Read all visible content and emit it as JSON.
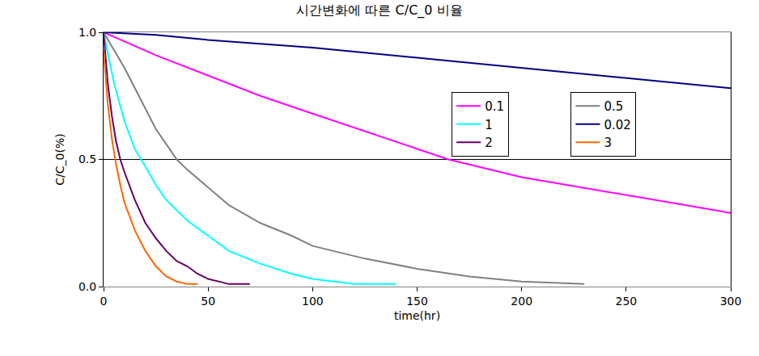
{
  "chart_data": {
    "type": "line",
    "title": "시간변화에 따른 C/C_0 비율",
    "x_label": "time(hr)",
    "y_label": "C/C_0(%)",
    "xlim": [
      0,
      300
    ],
    "xticks": [
      0,
      50,
      100,
      150,
      200,
      250,
      300
    ],
    "ylim": [
      0,
      1
    ],
    "yticks": [
      {
        "value": 0,
        "label": "0.0"
      },
      {
        "value": 0.5,
        "label": "0.5"
      },
      {
        "value": 1,
        "label": "1.0"
      }
    ],
    "grid": true,
    "legend": "upper right",
    "series": [
      {
        "name": "0.1",
        "color": "#ff00ff",
        "x": [
          0,
          25,
          50,
          75,
          100,
          125,
          150,
          165,
          200,
          250,
          300
        ],
        "values": [
          1.0,
          0.91,
          0.83,
          0.75,
          0.68,
          0.61,
          0.54,
          0.5,
          0.43,
          0.36,
          0.29
        ]
      },
      {
        "name": "0.5",
        "color": "#808080",
        "x": [
          0,
          5,
          10,
          15,
          20,
          25,
          30,
          35,
          40,
          50,
          60,
          75,
          90,
          100,
          125,
          150,
          175,
          200,
          230
        ],
        "values": [
          1.0,
          0.93,
          0.86,
          0.78,
          0.7,
          0.62,
          0.56,
          0.5,
          0.46,
          0.39,
          0.32,
          0.25,
          0.2,
          0.16,
          0.11,
          0.07,
          0.04,
          0.02,
          0.01
        ]
      },
      {
        "name": "1",
        "color": "#00ffff",
        "x": [
          0,
          2,
          5,
          10,
          15,
          18,
          25,
          30,
          40,
          50,
          60,
          75,
          90,
          100,
          120,
          140
        ],
        "values": [
          1.0,
          0.92,
          0.8,
          0.65,
          0.54,
          0.5,
          0.4,
          0.34,
          0.26,
          0.2,
          0.14,
          0.09,
          0.05,
          0.03,
          0.01,
          0.01
        ]
      },
      {
        "name": "0.02",
        "color": "#000080",
        "x": [
          0,
          25,
          50,
          100,
          150,
          200,
          250,
          300
        ],
        "values": [
          1.0,
          0.99,
          0.97,
          0.94,
          0.9,
          0.86,
          0.82,
          0.78
        ]
      },
      {
        "name": "2",
        "color": "#660066",
        "x": [
          0,
          2,
          4,
          6,
          8,
          10,
          15,
          20,
          25,
          30,
          35,
          40,
          45,
          50,
          60,
          70
        ],
        "values": [
          1.0,
          0.8,
          0.67,
          0.57,
          0.5,
          0.45,
          0.34,
          0.25,
          0.19,
          0.14,
          0.1,
          0.08,
          0.05,
          0.03,
          0.01,
          0.01
        ]
      },
      {
        "name": "3",
        "color": "#ff6600",
        "x": [
          0,
          2,
          4,
          6,
          8,
          10,
          15,
          20,
          25,
          30,
          35,
          40,
          45
        ],
        "values": [
          0.93,
          0.72,
          0.58,
          0.48,
          0.4,
          0.33,
          0.22,
          0.14,
          0.08,
          0.04,
          0.02,
          0.01,
          0.01
        ]
      }
    ]
  }
}
